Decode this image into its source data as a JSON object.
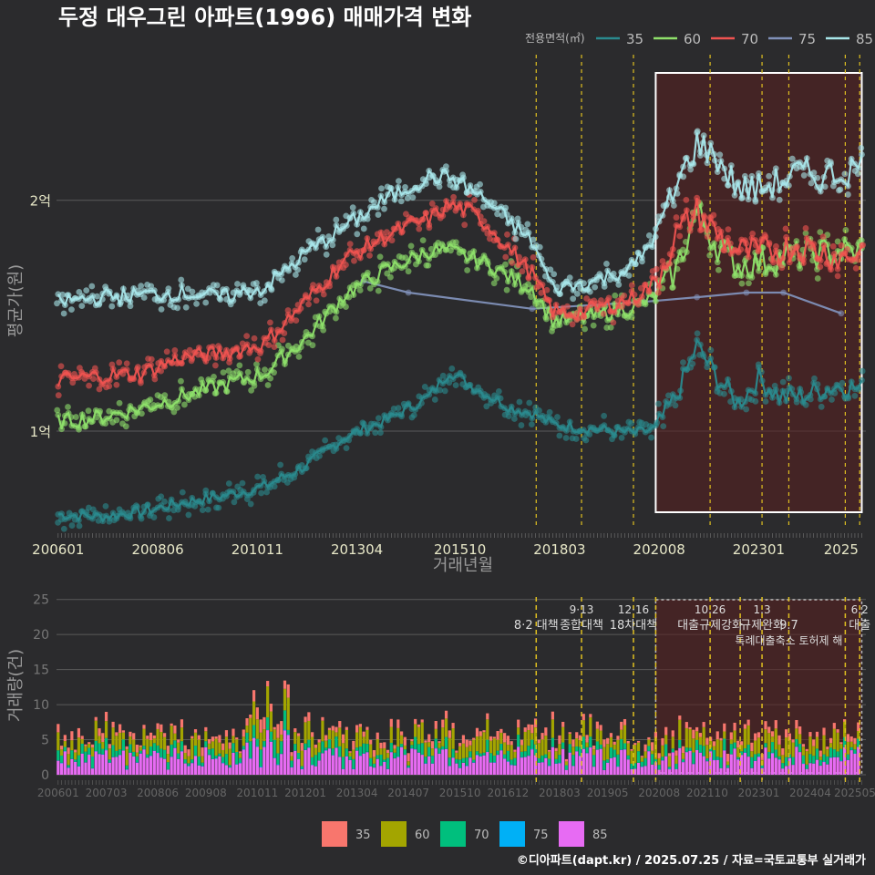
{
  "title": "두정 대우그린 아파트(1996) 매매가격 변화",
  "legend_title": "전용면적(㎡)",
  "footer": "©디아파트(dapt.kr) / 2025.07.25 / 자료=국토교통부 실거래가",
  "colors": {
    "background": "#2b2b2d",
    "price_35": "#2a8a8e",
    "price_60": "#8ee06a",
    "price_70": "#ef5350",
    "price_75": "#8090b8",
    "price_85": "#a8e6ea",
    "vol_35": "#f8766d",
    "vol_60": "#a3a500",
    "vol_70": "#00bf7d",
    "vol_75": "#00b0f6",
    "vol_85": "#e76bf3",
    "policy_line": "#e0c020",
    "highlight_fill": "#5a1f1f"
  },
  "chart_data": [
    {
      "type": "line",
      "name": "price",
      "xlabel": "거래년월",
      "ylabel": "평균가(원)",
      "x_ticks": [
        "200601",
        "200806",
        "201011",
        "201304",
        "201510",
        "201803",
        "202008",
        "202301",
        "2025"
      ],
      "y_ticks": [
        {
          "value": 10000,
          "label": "1억"
        },
        {
          "value": 20000,
          "label": "2억"
        }
      ],
      "ylim": [
        5700,
        26500
      ],
      "xlim": [
        2005.96,
        2025.6
      ],
      "highlight_range": [
        2020.5,
        2025.5
      ],
      "policy_dates": [
        2017.6,
        2018.7,
        2019.96,
        2021.82,
        2023.08,
        2023.73,
        2025.1,
        2025.45
      ],
      "series": [
        {
          "name": "35",
          "x": [
            2006.0,
            2007.0,
            2008.0,
            2009.0,
            2010.0,
            2011.0,
            2012.0,
            2013.0,
            2014.0,
            2015.0,
            2015.5,
            2016.0,
            2016.5,
            2017.0,
            2017.5,
            2018.0,
            2018.5,
            2019.0,
            2019.5,
            2020.0,
            2020.5,
            2021.0,
            2021.5,
            2022.0,
            2022.5,
            2023.0,
            2023.5,
            2024.0,
            2024.5,
            2025.0,
            2025.5
          ],
          "y": [
            6400,
            6300,
            6500,
            6900,
            7200,
            7600,
            8500,
            9800,
            10500,
            11500,
            12600,
            12000,
            11500,
            11000,
            10800,
            10300,
            10200,
            10100,
            10000,
            9900,
            10100,
            11500,
            13700,
            12300,
            11200,
            12300,
            11500,
            11500,
            11800,
            12000,
            11800
          ]
        },
        {
          "name": "60",
          "x": [
            2006.0,
            2007.0,
            2008.0,
            2009.0,
            2010.0,
            2011.0,
            2012.0,
            2013.0,
            2014.0,
            2015.0,
            2015.5,
            2016.0,
            2016.5,
            2017.0,
            2017.5,
            2018.0,
            2018.5,
            2019.0,
            2019.5,
            2020.0,
            2020.5,
            2021.0,
            2021.5,
            2022.0,
            2022.5,
            2023.0,
            2023.5,
            2024.0,
            2024.5,
            2025.0,
            2025.5
          ],
          "y": [
            10400,
            10600,
            11000,
            11500,
            12000,
            12500,
            14000,
            16000,
            17000,
            17800,
            17800,
            17500,
            17200,
            16600,
            16200,
            14800,
            14800,
            15000,
            15200,
            15400,
            15800,
            17000,
            19500,
            18000,
            17200,
            17300,
            17500,
            17600,
            17700,
            17800,
            17700
          ]
        },
        {
          "name": "70",
          "x": [
            2006.0,
            2007.0,
            2008.0,
            2009.0,
            2010.0,
            2011.0,
            2012.0,
            2013.0,
            2014.0,
            2015.0,
            2015.5,
            2016.0,
            2016.5,
            2017.0,
            2017.5,
            2018.0,
            2018.5,
            2019.0,
            2019.5,
            2020.0,
            2020.5,
            2021.0,
            2021.5,
            2022.0,
            2022.5,
            2023.0,
            2023.5,
            2024.0,
            2024.5,
            2025.0,
            2025.5
          ],
          "y": [
            12200,
            12400,
            12500,
            13200,
            13400,
            13800,
            15600,
            17500,
            18500,
            19200,
            19800,
            19500,
            18800,
            17800,
            16800,
            15200,
            15100,
            15300,
            15500,
            15800,
            16500,
            18500,
            19500,
            18500,
            17800,
            17700,
            17900,
            18000,
            17800,
            17500,
            17800
          ]
        },
        {
          "name": "75",
          "x": [
            2013.4,
            2014.5,
            2017.5,
            2020.2,
            2021.5,
            2022.7,
            2023.6,
            2025.0
          ],
          "y": [
            16500,
            16000,
            15300,
            15600,
            15800,
            16000,
            16000,
            15100
          ]
        },
        {
          "name": "85",
          "x": [
            2006.0,
            2007.0,
            2008.0,
            2009.0,
            2010.0,
            2011.0,
            2012.0,
            2013.0,
            2014.0,
            2015.0,
            2015.5,
            2016.0,
            2016.5,
            2017.0,
            2017.5,
            2018.0,
            2018.5,
            2019.0,
            2019.5,
            2020.0,
            2020.5,
            2021.0,
            2021.5,
            2022.0,
            2022.5,
            2023.0,
            2023.5,
            2024.0,
            2024.5,
            2025.0,
            2025.5
          ],
          "y": [
            15600,
            15800,
            15900,
            16000,
            15800,
            16200,
            17700,
            18900,
            20100,
            21000,
            21000,
            20500,
            19800,
            19000,
            18200,
            16200,
            16300,
            16500,
            16800,
            17200,
            18500,
            20500,
            22500,
            21800,
            20500,
            20500,
            20800,
            21200,
            21000,
            21200,
            21500
          ]
        }
      ]
    },
    {
      "type": "bar",
      "name": "volume",
      "stacked": true,
      "xlabel": "",
      "ylabel": "거래량(건)",
      "x_ticks": [
        "200601",
        "200703",
        "200806",
        "200908",
        "201011",
        "201201",
        "201304",
        "201407",
        "201510",
        "201612",
        "201803",
        "201905",
        "202008",
        "202110",
        "202301",
        "202404",
        "202505"
      ],
      "y_ticks": [
        0,
        5,
        10,
        15,
        20,
        25
      ],
      "ylim": [
        0,
        26
      ],
      "highlight_range": [
        2020.5,
        2025.5
      ],
      "policy_dates": [
        2017.6,
        2018.7,
        2019.96,
        2020.5,
        2021.82,
        2022.55,
        2023.08,
        2023.73,
        2025.1,
        2025.45
      ],
      "annotations": [
        {
          "label": "8·2 대책",
          "x": 2017.6,
          "row": 1
        },
        {
          "label": "9·13",
          "x": 2018.7,
          "row": 0
        },
        {
          "label": "종합대책",
          "x": 2018.7,
          "row": 1
        },
        {
          "label": "12·16",
          "x": 2019.96,
          "row": 0
        },
        {
          "label": "18차대책",
          "x": 2019.96,
          "row": 1
        },
        {
          "label": "10.26",
          "x": 2021.82,
          "row": 0
        },
        {
          "label": "대출규제강화",
          "x": 2021.82,
          "row": 1
        },
        {
          "label": "1.3",
          "x": 2023.08,
          "row": 0
        },
        {
          "label": "규제완화",
          "x": 2023.08,
          "row": 1
        },
        {
          "label": "9.7",
          "x": 2023.73,
          "row": 1
        },
        {
          "label": "특례대출축소 토허제 해",
          "x": 2023.73,
          "row": 2
        },
        {
          "label": "6.2",
          "x": 2025.45,
          "row": 0
        },
        {
          "label": "대출",
          "x": 2025.45,
          "row": 1
        }
      ],
      "series": [
        {
          "name": "35",
          "value": 0.7
        },
        {
          "name": "60",
          "value": 1.6
        },
        {
          "name": "70",
          "value": 0.9
        },
        {
          "name": "75",
          "value": 0.05
        },
        {
          "name": "85",
          "value": 2.1
        }
      ]
    }
  ],
  "price_legend": [
    {
      "name": "35",
      "color_key": "price_35"
    },
    {
      "name": "60",
      "color_key": "price_60"
    },
    {
      "name": "70",
      "color_key": "price_70"
    },
    {
      "name": "75",
      "color_key": "price_75"
    },
    {
      "name": "85",
      "color_key": "price_85"
    }
  ],
  "volume_legend": [
    {
      "name": "35",
      "color_key": "vol_35"
    },
    {
      "name": "60",
      "color_key": "vol_60"
    },
    {
      "name": "70",
      "color_key": "vol_70"
    },
    {
      "name": "75",
      "color_key": "vol_75"
    },
    {
      "name": "85",
      "color_key": "vol_85"
    }
  ]
}
